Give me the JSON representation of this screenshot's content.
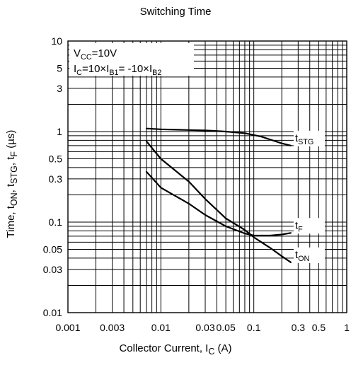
{
  "chart_data": {
    "type": "line",
    "title": "Switching Time",
    "xlabel": "Collector Current, I<sub>C</sub> (A)",
    "ylabel": "Time, t<sub>ON</sub>, t<sub>STG</sub>, t<sub>F</sub> (µs)",
    "xscale": "log",
    "yscale": "log",
    "xlim": [
      0.001,
      1
    ],
    "ylim": [
      0.01,
      10
    ],
    "grid": true,
    "x_ticks": [
      {
        "value": 0.001,
        "label": "0.001"
      },
      {
        "value": 0.003,
        "label": "0.003"
      },
      {
        "value": 0.01,
        "label": "0.01"
      },
      {
        "value": 0.03,
        "label": "0.03"
      },
      {
        "value": 0.05,
        "label": "0.05"
      },
      {
        "value": 0.1,
        "label": "0.1"
      },
      {
        "value": 0.3,
        "label": "0.3"
      },
      {
        "value": 0.5,
        "label": "0.5"
      },
      {
        "value": 1,
        "label": "1"
      }
    ],
    "y_ticks": [
      {
        "value": 10,
        "label": "10"
      },
      {
        "value": 5,
        "label": "5"
      },
      {
        "value": 3,
        "label": "3"
      },
      {
        "value": 1,
        "label": "1"
      },
      {
        "value": 0.5,
        "label": "0.5"
      },
      {
        "value": 0.3,
        "label": "0.3"
      },
      {
        "value": 0.1,
        "label": "0.1"
      },
      {
        "value": 0.05,
        "label": "0.05"
      },
      {
        "value": 0.03,
        "label": "0.03"
      },
      {
        "value": 0.01,
        "label": "0.01"
      }
    ],
    "conditions": [
      "V<sub>CC</sub>=10V",
      "I<sub>C</sub>=10×I<sub>B1</sub>= -10×I<sub>B2</sub>"
    ],
    "series": [
      {
        "name": "t<sub>STG</sub>",
        "x": [
          0.007,
          0.01,
          0.02,
          0.03,
          0.05,
          0.08,
          0.12,
          0.2,
          0.25
        ],
        "y": [
          1.08,
          1.06,
          1.04,
          1.03,
          1.0,
          0.96,
          0.88,
          0.74,
          0.7
        ]
      },
      {
        "name": "t<sub>F</sub>",
        "x": [
          0.007,
          0.01,
          0.02,
          0.03,
          0.05,
          0.08,
          0.1,
          0.15,
          0.2,
          0.25
        ],
        "y": [
          0.36,
          0.24,
          0.16,
          0.12,
          0.09,
          0.075,
          0.071,
          0.071,
          0.073,
          0.076
        ]
      },
      {
        "name": "t<sub>ON</sub>",
        "x": [
          0.007,
          0.01,
          0.02,
          0.03,
          0.05,
          0.08,
          0.1,
          0.15,
          0.2,
          0.25
        ],
        "y": [
          0.78,
          0.5,
          0.28,
          0.18,
          0.11,
          0.082,
          0.068,
          0.052,
          0.042,
          0.036
        ]
      }
    ]
  }
}
